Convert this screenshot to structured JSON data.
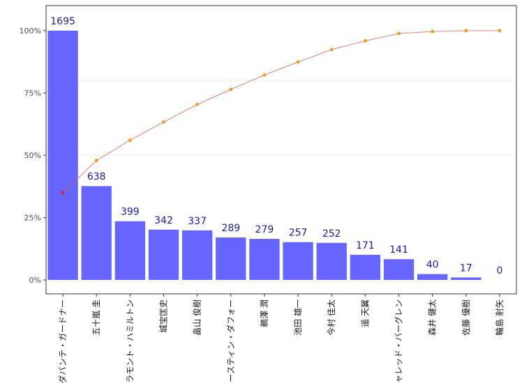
{
  "chart_data": {
    "type": "bar",
    "categories": [
      "ダバンテ・ガードナー",
      "五十嵐 圭",
      "ラモント・ハミルトン",
      "城宝匡史",
      "畠山 俊樹",
      "オースティン・ダフォー",
      "鵜澤 潤",
      "池田 雄一",
      "今村 佳太",
      "遥 天翼",
      "ジャレッド・バーグレン",
      "森井 健太",
      "佐藤 優樹",
      "輪島 射矢"
    ],
    "values": [
      1695,
      638,
      399,
      342,
      337,
      289,
      279,
      257,
      252,
      171,
      141,
      40,
      17,
      0
    ],
    "bar_scale_max": 1695,
    "cumulative_line": [
      0.35,
      0.479,
      0.5606,
      0.6333,
      0.7039,
      0.7642,
      0.8219,
      0.8743,
      0.9243,
      0.9591,
      0.9884,
      0.9965,
      0.9999,
      1.0
    ],
    "ylim": [
      -0.03,
      1.1
    ],
    "y_ticks": [
      0,
      0.25,
      0.5,
      0.75,
      1.0
    ],
    "y_tick_labels": [
      "0%",
      "25%",
      "50%",
      "75%",
      "100%"
    ],
    "reference_lines": [
      0.5,
      0.8
    ],
    "title": "",
    "xlabel": "",
    "ylabel": "",
    "grid": false,
    "colors": {
      "bar": "#6666ff",
      "line": "#e05a4a",
      "point": "#f0a020",
      "first_point": "#c03040",
      "data_label": "#1a1aa6",
      "reference_line": "#c8c890",
      "axis": "#333333"
    }
  }
}
